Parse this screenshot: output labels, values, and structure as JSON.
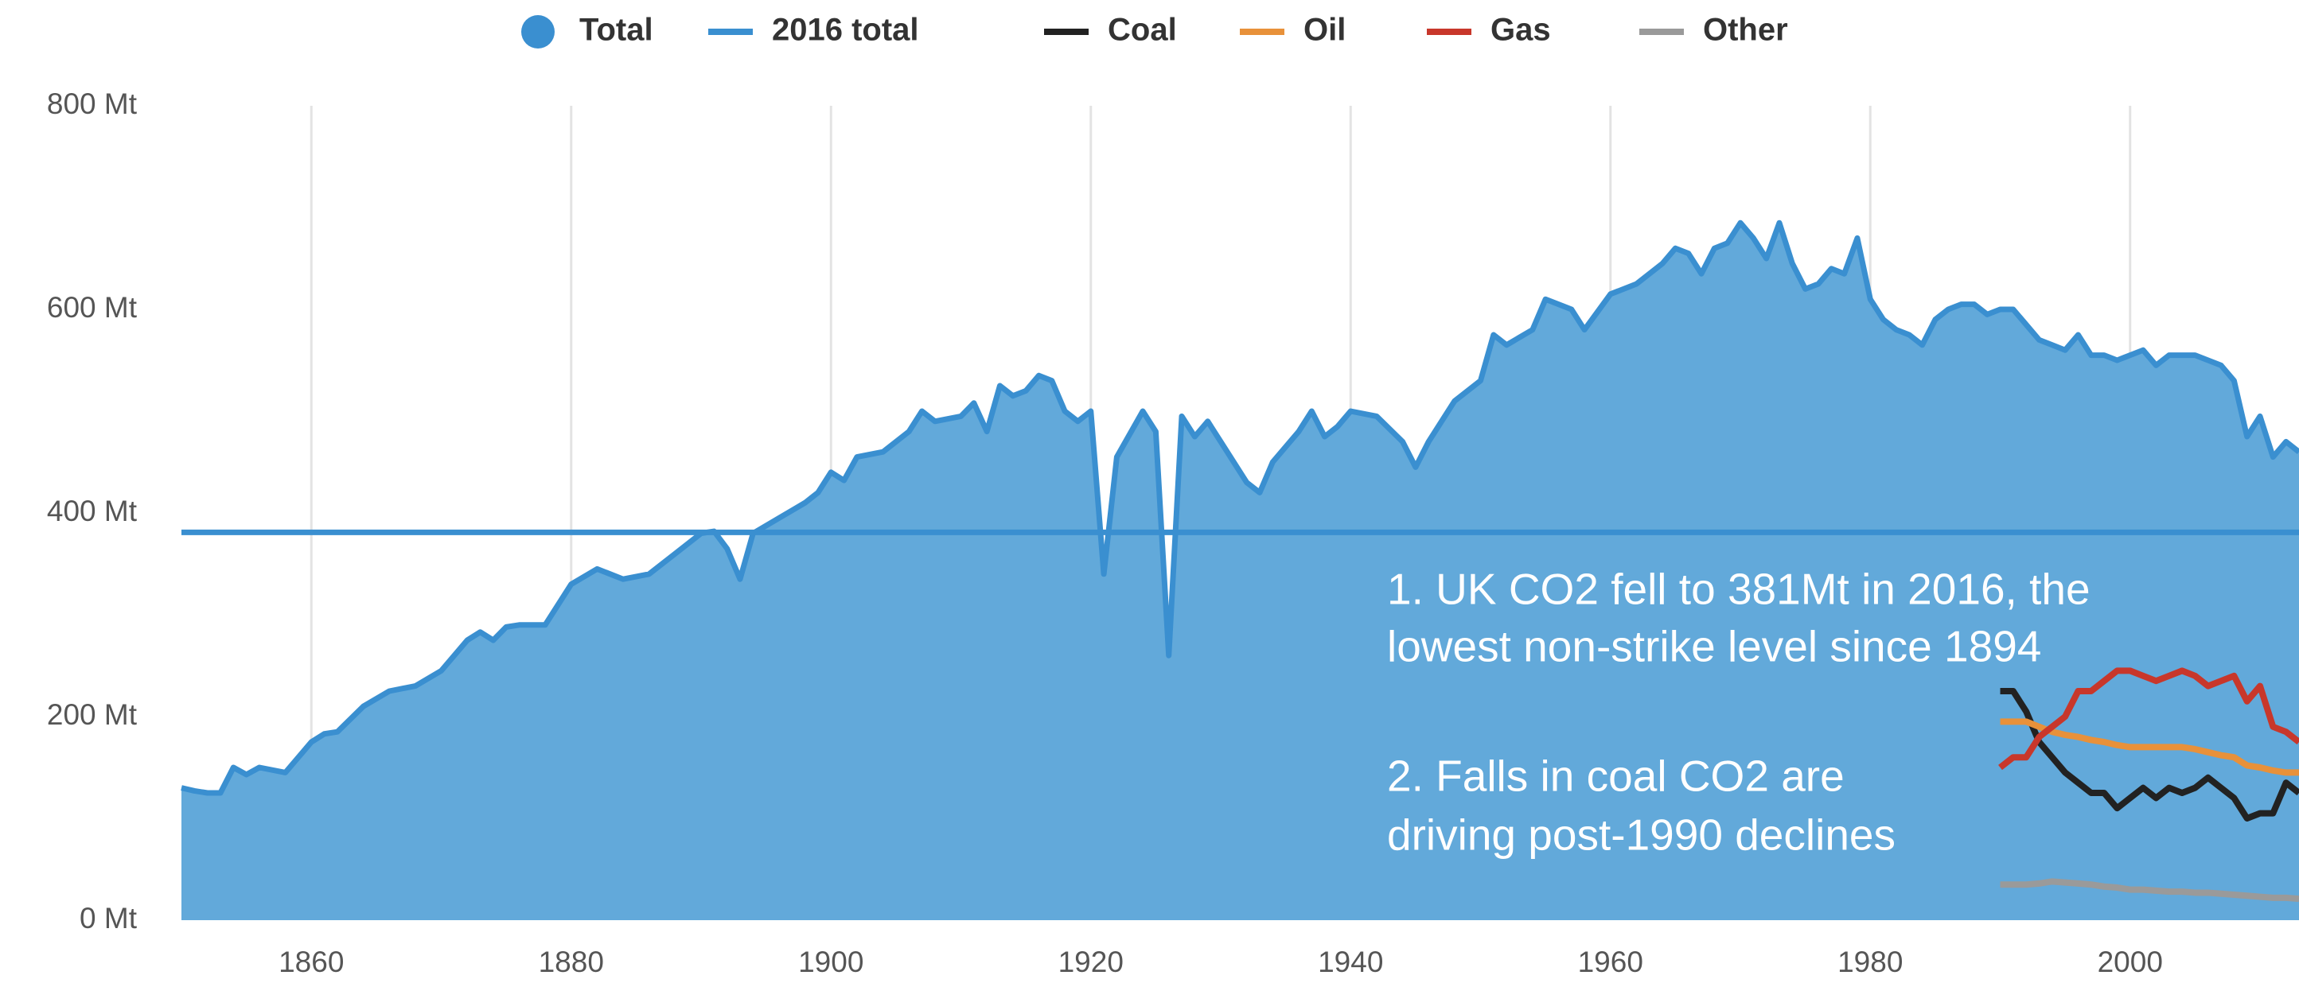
{
  "chart_data": {
    "type": "line",
    "series": [
      {
        "name": "Total",
        "type": "area",
        "color": "#3a8fd0",
        "fill": "#62a9da",
        "x": [
          1850,
          1851,
          1852,
          1853,
          1854,
          1855,
          1856,
          1858,
          1860,
          1861,
          1862,
          1864,
          1866,
          1868,
          1870,
          1872,
          1873,
          1874,
          1875,
          1876,
          1878,
          1880,
          1882,
          1884,
          1886,
          1888,
          1890,
          1891,
          1892,
          1893,
          1894,
          1896,
          1898,
          1899,
          1900,
          1901,
          1902,
          1904,
          1906,
          1907,
          1908,
          1910,
          1911,
          1912,
          1913,
          1914,
          1915,
          1916,
          1917,
          1918,
          1919,
          1920,
          1921,
          1922,
          1924,
          1925,
          1926,
          1927,
          1928,
          1929,
          1930,
          1932,
          1933,
          1934,
          1936,
          1937,
          1938,
          1939,
          1940,
          1942,
          1944,
          1945,
          1946,
          1948,
          1950,
          1951,
          1952,
          1954,
          1955,
          1957,
          1958,
          1960,
          1962,
          1964,
          1965,
          1966,
          1967,
          1968,
          1969,
          1970,
          1971,
          1972,
          1973,
          1974,
          1975,
          1976,
          1977,
          1978,
          1979,
          1980,
          1981,
          1982,
          1983,
          1984,
          1985,
          1986,
          1987,
          1988,
          1989,
          1990,
          1991,
          1992,
          1993,
          1994,
          1995,
          1996,
          1997,
          1998,
          1999,
          2000,
          2001,
          2002,
          2003,
          2004,
          2005,
          2006,
          2007,
          2008,
          2009,
          2010,
          2011,
          2012,
          2013
        ],
        "values": [
          130,
          127,
          125,
          125,
          150,
          143,
          150,
          145,
          175,
          183,
          185,
          210,
          225,
          230,
          245,
          275,
          283,
          275,
          288,
          290,
          290,
          330,
          345,
          335,
          340,
          360,
          380,
          382,
          365,
          335,
          380,
          395,
          410,
          420,
          440,
          432,
          455,
          460,
          480,
          500,
          490,
          495,
          508,
          480,
          525,
          515,
          520,
          535,
          530,
          500,
          490,
          500,
          340,
          455,
          500,
          480,
          260,
          495,
          475,
          490,
          470,
          430,
          420,
          450,
          480,
          500,
          475,
          485,
          500,
          495,
          470,
          445,
          470,
          510,
          530,
          575,
          565,
          580,
          610,
          600,
          580,
          615,
          625,
          645,
          660,
          655,
          635,
          660,
          665,
          685,
          670,
          650,
          685,
          645,
          620,
          625,
          640,
          635,
          670,
          610,
          590,
          580,
          575,
          565,
          590,
          600,
          605,
          605,
          595,
          600,
          600,
          585,
          570,
          565,
          560,
          575,
          555,
          555,
          550,
          555,
          560,
          545,
          555,
          555,
          555,
          550,
          545,
          530,
          475,
          495,
          455,
          470,
          460
        ]
      },
      {
        "name": "Coal",
        "color": "#222222",
        "x": [
          1990,
          1991,
          1992,
          1993,
          1994,
          1995,
          1996,
          1997,
          1998,
          1999,
          2000,
          2001,
          2002,
          2003,
          2004,
          2005,
          2006,
          2007,
          2008,
          2009,
          2010,
          2011,
          2012,
          2013
        ],
        "values": [
          225,
          225,
          205,
          175,
          160,
          145,
          135,
          125,
          125,
          110,
          120,
          130,
          120,
          130,
          125,
          130,
          140,
          130,
          120,
          100,
          105,
          105,
          135,
          125
        ]
      },
      {
        "name": "Oil",
        "color": "#e8913a",
        "x": [
          1990,
          1991,
          1992,
          1993,
          1994,
          1995,
          1996,
          1997,
          1998,
          1999,
          2000,
          2001,
          2002,
          2003,
          2004,
          2005,
          2006,
          2007,
          2008,
          2009,
          2010,
          2011,
          2012,
          2013
        ],
        "values": [
          195,
          195,
          195,
          190,
          185,
          182,
          180,
          177,
          175,
          172,
          170,
          170,
          170,
          170,
          170,
          168,
          165,
          162,
          160,
          152,
          150,
          147,
          145,
          145
        ]
      },
      {
        "name": "Gas",
        "color": "#c8372b",
        "x": [
          1990,
          1991,
          1992,
          1993,
          1994,
          1995,
          1996,
          1997,
          1998,
          1999,
          2000,
          2001,
          2002,
          2003,
          2004,
          2005,
          2006,
          2007,
          2008,
          2009,
          2010,
          2011,
          2012,
          2013
        ],
        "values": [
          150,
          160,
          160,
          180,
          190,
          200,
          225,
          225,
          235,
          245,
          245,
          240,
          235,
          240,
          245,
          240,
          230,
          235,
          240,
          215,
          230,
          190,
          185,
          175
        ]
      },
      {
        "name": "Other",
        "color": "#9a9a9a",
        "x": [
          1990,
          1991,
          1992,
          1993,
          1994,
          1995,
          1996,
          1997,
          1998,
          1999,
          2000,
          2001,
          2002,
          2003,
          2004,
          2005,
          2006,
          2007,
          2008,
          2009,
          2010,
          2011,
          2012,
          2013
        ],
        "values": [
          35,
          35,
          35,
          36,
          38,
          37,
          36,
          35,
          33,
          32,
          30,
          30,
          29,
          28,
          28,
          27,
          27,
          26,
          25,
          24,
          23,
          22,
          22,
          21
        ]
      }
    ],
    "hlines": [
      {
        "name": "2016 total",
        "value": 381,
        "color": "#3a8fd0"
      }
    ],
    "annotations": [
      [
        "1. UK CO2 fell to 381Mt in 2016, the",
        "lowest non-strike level since 1894"
      ],
      [
        "2. Falls in coal CO2 are",
        "driving post-1990 declines"
      ]
    ],
    "xlim": [
      1850,
      2013
    ],
    "ylim": [
      0,
      800
    ],
    "xticks": [
      1860,
      1880,
      1900,
      1920,
      1940,
      1960,
      1980,
      2000
    ],
    "yticks": [
      {
        "value": 0,
        "label": "0 Mt"
      },
      {
        "value": 200,
        "label": "200 Mt"
      },
      {
        "value": 400,
        "label": "400 Mt"
      },
      {
        "value": 600,
        "label": "600 Mt"
      },
      {
        "value": 800,
        "label": "800 Mt"
      }
    ],
    "grid": "x",
    "legend": "top"
  }
}
